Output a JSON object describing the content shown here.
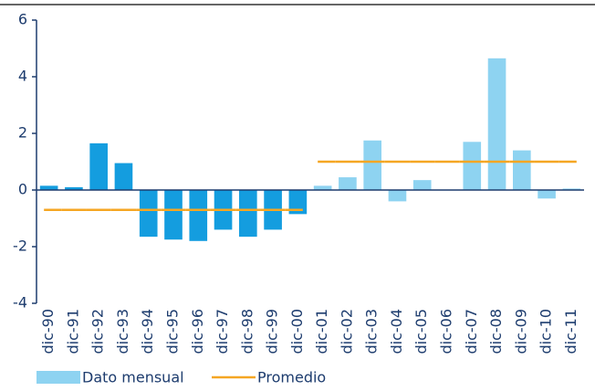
{
  "chart_data": {
    "type": "bar",
    "categories": [
      "dic-90",
      "dic-91",
      "dic-92",
      "dic-93",
      "dic-94",
      "dic-95",
      "dic-96",
      "dic-97",
      "dic-98",
      "dic-99",
      "dic-00",
      "dic-01",
      "dic-02",
      "dic-03",
      "dic-04",
      "dic-05",
      "dic-06",
      "dic-07",
      "dic-08",
      "dic-09",
      "dic-10",
      "dic-11"
    ],
    "series": [
      {
        "name": "Dato mensual",
        "color": "#8ed3f1",
        "colors": [
          "#149ddf",
          "#149ddf",
          "#149ddf",
          "#149ddf",
          "#149ddf",
          "#149ddf",
          "#149ddf",
          "#149ddf",
          "#149ddf",
          "#149ddf",
          "#149ddf",
          "#8ed3f1",
          "#8ed3f1",
          "#8ed3f1",
          "#8ed3f1",
          "#8ed3f1",
          "#8ed3f1",
          "#8ed3f1",
          "#8ed3f1",
          "#8ed3f1",
          "#8ed3f1",
          "#8ed3f1"
        ],
        "values": [
          0.15,
          0.1,
          1.65,
          0.95,
          -1.65,
          -1.75,
          -1.8,
          -1.4,
          -1.65,
          -1.4,
          -0.85,
          0.15,
          0.45,
          1.75,
          -0.4,
          0.35,
          0,
          1.7,
          4.65,
          1.4,
          -0.3,
          0.05
        ]
      },
      {
        "name": "Promedio",
        "color": "#f5a623",
        "type": "line",
        "values": [
          -0.7,
          -0.7,
          -0.7,
          -0.7,
          -0.7,
          -0.7,
          -0.7,
          -0.7,
          -0.7,
          -0.7,
          -0.7,
          1.0,
          1.0,
          1.0,
          1.0,
          1.0,
          1.0,
          1.0,
          1.0,
          1.0,
          1.0,
          1.0
        ]
      }
    ],
    "ylim": [
      -4,
      6
    ],
    "yticks": [
      -4,
      -2,
      0,
      2,
      4,
      6
    ]
  }
}
